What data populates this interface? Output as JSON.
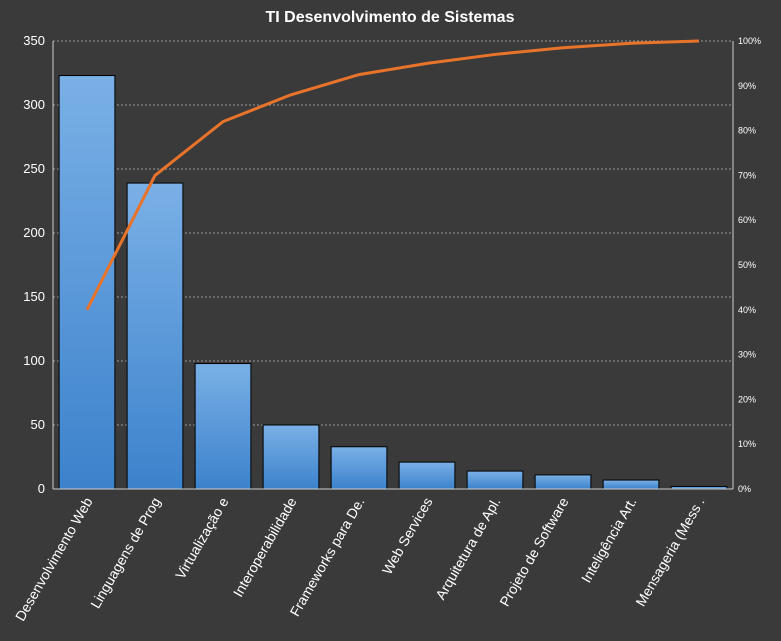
{
  "chart_data": {
    "type": "bar",
    "title": "TI Desenvolvimento  de Sistemas",
    "categories": [
      "Desenvolvimento Web",
      "Linguagens de Prog",
      "Virtualização e",
      "Interoperabilidade",
      "Frameworks  para De.",
      "Web Services",
      "Arquitetura  de Apl.",
      "Projeto de Software",
      "Inteligência Art.",
      "Mensageria (Mess ."
    ],
    "values": [
      323,
      239,
      98,
      50,
      33,
      21,
      14,
      11,
      7,
      2
    ],
    "cumulative_percent": [
      40,
      70,
      82,
      88,
      92.5,
      95,
      97,
      98.5,
      99.5,
      100
    ],
    "ylim": [
      0,
      350
    ],
    "yticks": [
      "0",
      "50",
      "100",
      "150",
      "200",
      "250",
      "300",
      "350"
    ],
    "y2lim": [
      0,
      100
    ],
    "y2ticks": [
      "0%",
      "10%",
      "20%",
      "30%",
      "40%",
      "50%",
      "60%",
      "70%",
      "80%",
      "90%",
      "100%"
    ],
    "grid": true,
    "colors": {
      "background": "#3a3a3a",
      "bar_top": "#7ab0e6",
      "bar_bottom": "#3c82cc",
      "line": "#e8732a",
      "grid": "#bdbdbd",
      "text": "#ffffff"
    }
  }
}
